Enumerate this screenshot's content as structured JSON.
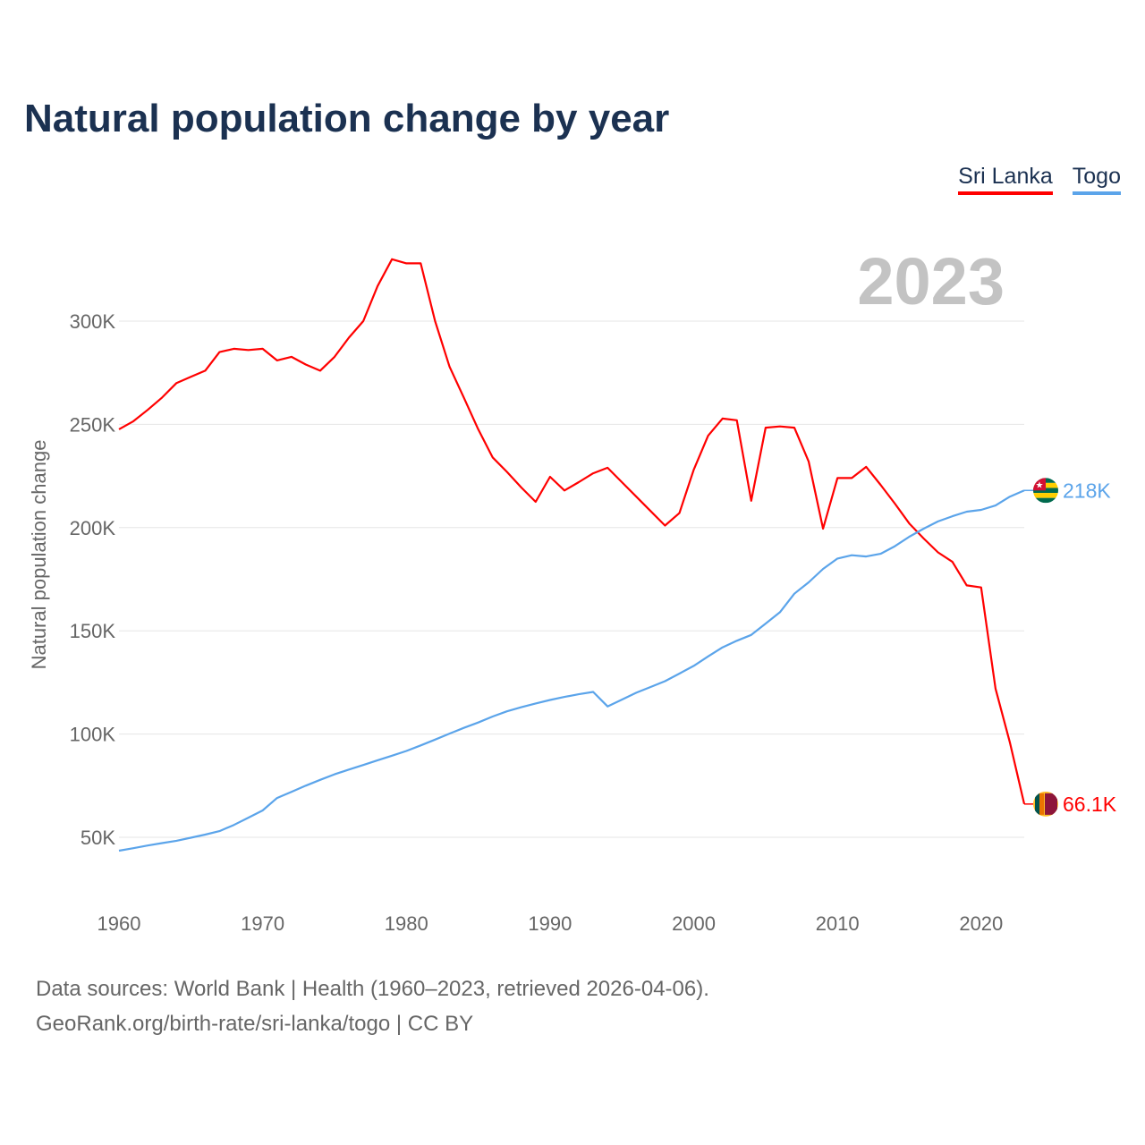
{
  "chart_data": {
    "type": "line",
    "title": "Natural population change by year",
    "ylabel": "Natural population change",
    "xlabel": "",
    "xlim": [
      1960,
      2023
    ],
    "ylim": [
      25000,
      340000
    ],
    "x_ticks": [
      1960,
      1970,
      1980,
      1990,
      2000,
      2010,
      2020
    ],
    "x_tick_labels": [
      "1960",
      "1970",
      "1980",
      "1990",
      "2000",
      "2010",
      "2020"
    ],
    "y_ticks": [
      50000,
      100000,
      150000,
      200000,
      250000,
      300000
    ],
    "y_tick_labels": [
      "50K",
      "100K",
      "150K",
      "200K",
      "250K",
      "300K"
    ],
    "grid": true,
    "legend_placement": "top-right",
    "current_year_label": "2023",
    "x": [
      1960,
      1961,
      1962,
      1963,
      1964,
      1965,
      1966,
      1967,
      1968,
      1969,
      1970,
      1971,
      1972,
      1973,
      1974,
      1975,
      1976,
      1977,
      1978,
      1979,
      1980,
      1981,
      1982,
      1983,
      1984,
      1985,
      1986,
      1987,
      1988,
      1989,
      1990,
      1991,
      1992,
      1993,
      1994,
      1995,
      1996,
      1997,
      1998,
      1999,
      2000,
      2001,
      2002,
      2003,
      2004,
      2005,
      2006,
      2007,
      2008,
      2009,
      2010,
      2011,
      2012,
      2013,
      2014,
      2015,
      2016,
      2017,
      2018,
      2019,
      2020,
      2021,
      2022,
      2023
    ],
    "series": [
      {
        "name": "Sri Lanka",
        "color": "#ff0000",
        "end_label": "66.1K",
        "values": [
          247600,
          251500,
          257000,
          263000,
          270000,
          273000,
          276000,
          285000,
          286600,
          286000,
          286600,
          281000,
          282700,
          279000,
          276000,
          282700,
          292000,
          300000,
          317000,
          330000,
          328000,
          328000,
          300000,
          278000,
          263000,
          247600,
          234000,
          227000,
          219400,
          212500,
          224600,
          218000,
          222000,
          226300,
          229000,
          222000,
          215000,
          208000,
          201000,
          207000,
          228000,
          244500,
          252800,
          252000,
          213000,
          248400,
          249000,
          248400,
          232000,
          199500,
          224000,
          224000,
          229400,
          220700,
          211600,
          202000,
          194700,
          188000,
          183400,
          172000,
          171000,
          122000,
          96000,
          66100
        ]
      },
      {
        "name": "Togo",
        "color": "#5ba4ea",
        "end_label": "218K",
        "values": [
          43500,
          44700,
          46000,
          47200,
          48300,
          49800,
          51300,
          53000,
          56000,
          59500,
          63000,
          69000,
          72000,
          75000,
          77800,
          80500,
          82800,
          85000,
          87300,
          89500,
          91800,
          94500,
          97300,
          100200,
          103000,
          105600,
          108500,
          111000,
          113000,
          114800,
          116500,
          118000,
          119300,
          120400,
          113400,
          116700,
          120000,
          122800,
          125600,
          129300,
          133000,
          137600,
          142000,
          145200,
          148000,
          153500,
          159000,
          168000,
          173500,
          180000,
          185000,
          186600,
          186000,
          187300,
          191000,
          195600,
          199500,
          203000,
          205500,
          207700,
          208600,
          210700,
          215000,
          218000
        ]
      }
    ]
  },
  "footer": {
    "line1": "Data sources: World Bank | Health (1960–2023, retrieved 2026-04-06).",
    "line2": "GeoRank.org/birth-rate/sri-lanka/togo | CC BY"
  }
}
